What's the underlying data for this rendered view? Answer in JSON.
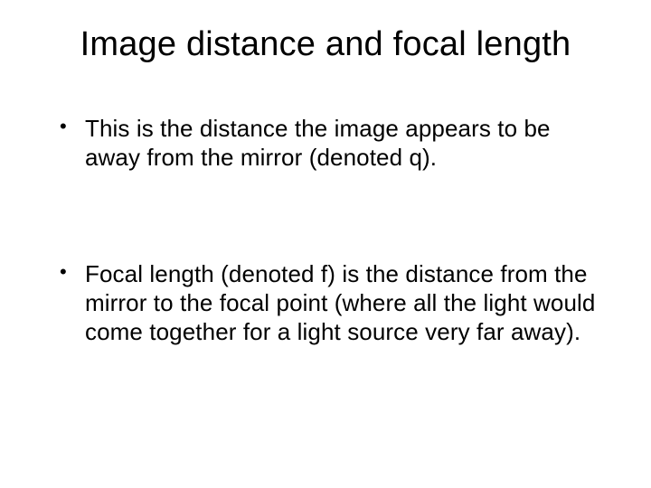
{
  "slide": {
    "title": "Image distance and focal length",
    "bullets": [
      "This is the distance the image appears to be away from the mirror (denoted q).",
      "Focal length (denoted f) is the distance from the mirror to the focal point (where all the light would come together for a light source very far away)."
    ],
    "title_fontsize": 38,
    "body_fontsize": 26,
    "text_color": "#000000",
    "background_color": "#ffffff",
    "font_family": "Arial"
  }
}
